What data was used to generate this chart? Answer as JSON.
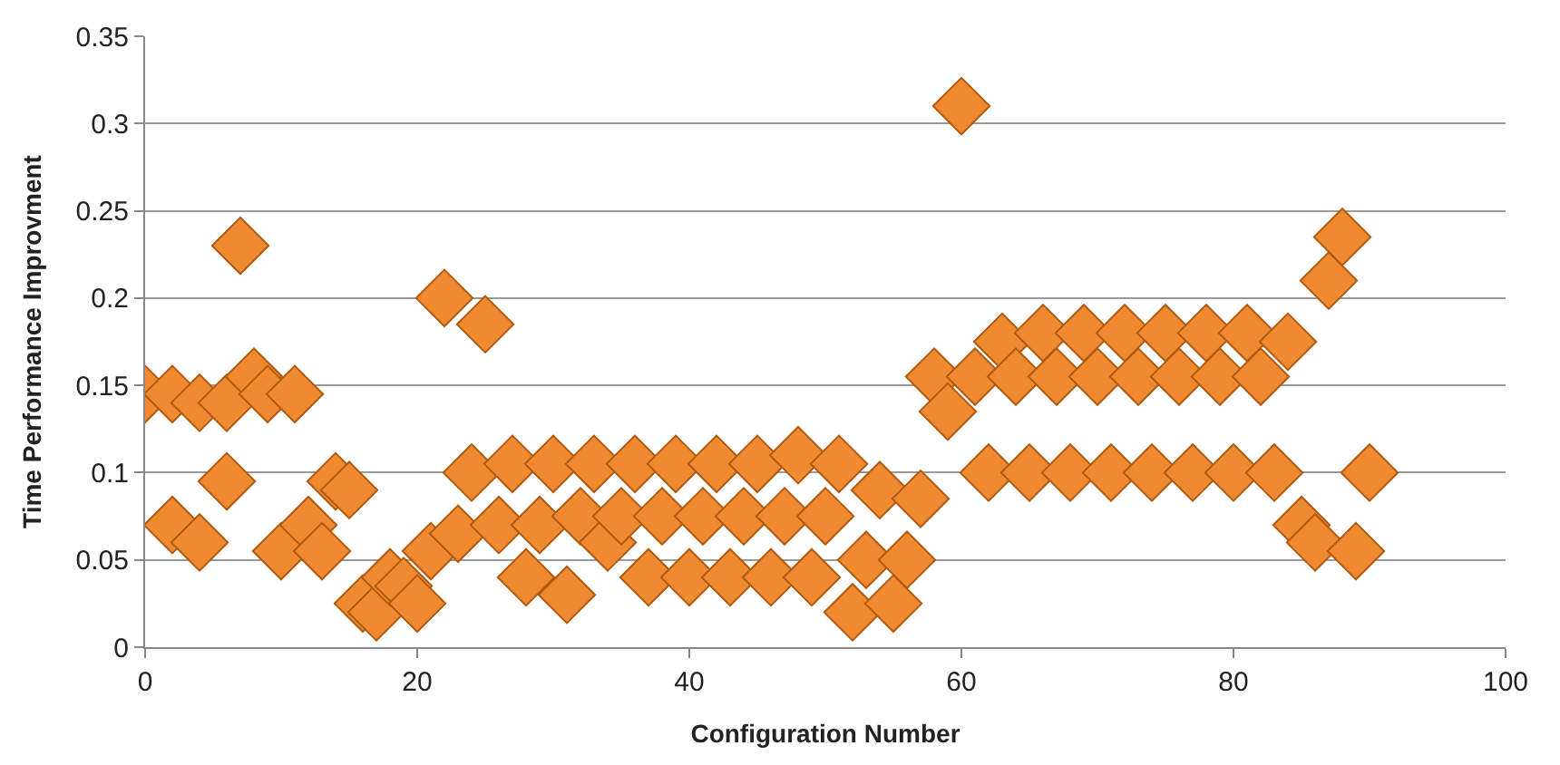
{
  "chart_data": {
    "type": "scatter",
    "xlabel": "Configuration Number",
    "ylabel": "Time Performance Improvment",
    "xlim": [
      0,
      100
    ],
    "xticks": [
      0,
      20,
      40,
      60,
      80,
      100
    ],
    "ylim": [
      0,
      0.35
    ],
    "yticks": [
      0,
      0.05,
      0.1,
      0.15,
      0.2,
      0.25,
      0.3,
      0.35
    ],
    "grid": "y",
    "legend": false,
    "marker": "diamond",
    "series": [
      {
        "color": "#f08a30",
        "x": [
          0,
          2,
          2,
          4,
          4,
          6,
          6,
          7,
          8,
          9,
          10,
          11,
          12,
          13,
          14,
          15,
          16,
          17,
          18,
          19,
          20,
          21,
          22,
          23,
          24,
          25,
          26,
          27,
          28,
          29,
          30,
          31,
          32,
          33,
          34,
          35,
          36,
          37,
          38,
          39,
          40,
          41,
          42,
          43,
          44,
          45,
          46,
          47,
          48,
          49,
          50,
          51,
          52,
          53,
          54,
          55,
          56,
          57,
          58,
          59,
          60,
          61,
          62,
          63,
          64,
          65,
          66,
          67,
          68,
          69,
          70,
          71,
          72,
          73,
          74,
          75,
          76,
          77,
          78,
          79,
          80,
          81,
          82,
          83,
          84,
          85,
          86,
          87,
          88,
          89,
          90
        ],
        "values": [
          0.145,
          0.145,
          0.07,
          0.14,
          0.06,
          0.14,
          0.095,
          0.23,
          0.155,
          0.145,
          0.055,
          0.145,
          0.07,
          0.055,
          0.095,
          0.09,
          0.025,
          0.02,
          0.04,
          0.035,
          0.025,
          0.055,
          0.2,
          0.065,
          0.1,
          0.185,
          0.07,
          0.105,
          0.04,
          0.07,
          0.105,
          0.03,
          0.075,
          0.105,
          0.06,
          0.075,
          0.105,
          0.04,
          0.075,
          0.105,
          0.04,
          0.075,
          0.105,
          0.04,
          0.075,
          0.105,
          0.04,
          0.075,
          0.11,
          0.04,
          0.075,
          0.105,
          0.02,
          0.05,
          0.09,
          0.025,
          0.05,
          0.085,
          0.155,
          0.135,
          0.31,
          0.155,
          0.1,
          0.175,
          0.155,
          0.1,
          0.18,
          0.155,
          0.1,
          0.18,
          0.155,
          0.1,
          0.18,
          0.155,
          0.1,
          0.18,
          0.155,
          0.1,
          0.18,
          0.155,
          0.1,
          0.18,
          0.155,
          0.1,
          0.175,
          0.07,
          0.06,
          0.21,
          0.235,
          0.055,
          0.1
        ]
      }
    ]
  }
}
